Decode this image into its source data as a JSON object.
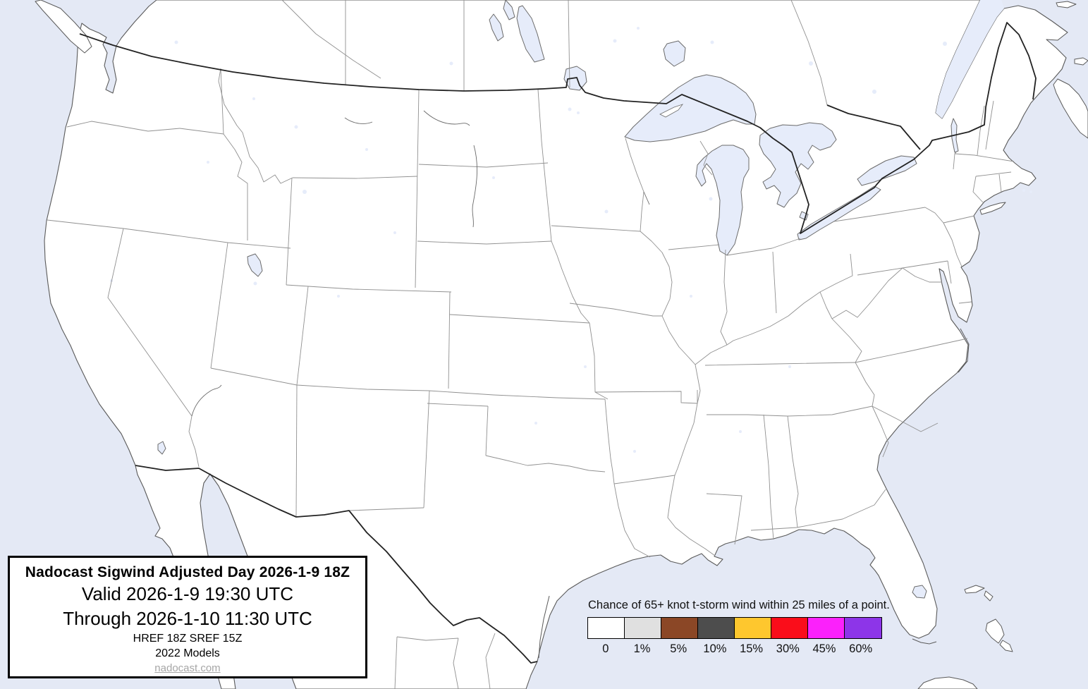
{
  "title_box": {
    "product_title": "Nadocast Sigwind Adjusted Day 2026-1-9 18Z",
    "valid_line": "Valid 2026-1-9 19:30 UTC",
    "through_line": "Through 2026-1-10 11:30 UTC",
    "models_line": "HREF 18Z SREF 15Z",
    "models_year_line": "2022 Models",
    "website": "nadocast.com"
  },
  "legend": {
    "caption": "Chance of 65+ knot t-storm wind within 25 miles of a point.",
    "bins": [
      {
        "label": "0",
        "color": "#ffffff"
      },
      {
        "label": "1%",
        "color": "#e0e0e0"
      },
      {
        "label": "5%",
        "color": "#8b4726"
      },
      {
        "label": "10%",
        "color": "#4d4d4d"
      },
      {
        "label": "15%",
        "color": "#fec72e"
      },
      {
        "label": "30%",
        "color": "#fa0d1a"
      },
      {
        "label": "45%",
        "color": "#fb21fb"
      },
      {
        "label": "60%",
        "color": "#8d35e8"
      }
    ]
  },
  "map": {
    "region": "Contiguous United States with southern Canada and northern Mexico",
    "colors": {
      "ocean": "#e4e9f5",
      "lake": "#e6ecfa",
      "land": "#ffffff",
      "coastline": "#5a5a5a",
      "state_border": "#909090",
      "national_border": "#222222",
      "river": "#6a6a6a"
    }
  }
}
